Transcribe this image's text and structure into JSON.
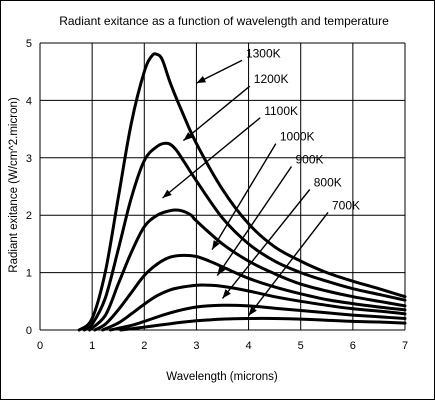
{
  "chart_data": {
    "type": "line",
    "title": "Radiant exitance as a function of wavelength and temperature",
    "xlabel": "Wavelength (microns)",
    "ylabel": "Radiant exitance (W/cm^2.micron)",
    "xlim": [
      0,
      7
    ],
    "ylim": [
      0,
      5
    ],
    "xticks": [
      "0",
      "1",
      "2",
      "3",
      "4",
      "5",
      "6",
      "7"
    ],
    "yticks": [
      "0",
      "1",
      "2",
      "3",
      "4",
      "5"
    ],
    "grid": true,
    "series": [
      {
        "name": "1300K",
        "x": [
          0.75,
          1.0,
          1.25,
          1.5,
          1.75,
          2.0,
          2.15,
          2.25,
          2.35,
          2.5,
          2.75,
          3.0,
          3.5,
          4.0,
          4.5,
          5.0,
          5.5,
          6.0,
          6.5,
          7.0
        ],
        "y": [
          0.0,
          0.2,
          1.0,
          2.3,
          3.6,
          4.5,
          4.78,
          4.8,
          4.7,
          4.3,
          3.75,
          3.25,
          2.45,
          1.85,
          1.45,
          1.2,
          1.0,
          0.85,
          0.72,
          0.58
        ]
      },
      {
        "name": "1200K",
        "x": [
          0.85,
          1.0,
          1.25,
          1.5,
          1.75,
          2.0,
          2.25,
          2.45,
          2.6,
          2.75,
          3.0,
          3.5,
          4.0,
          4.5,
          5.0,
          5.5,
          6.0,
          6.5,
          7.0
        ],
        "y": [
          0.0,
          0.1,
          0.55,
          1.4,
          2.3,
          2.95,
          3.2,
          3.25,
          3.15,
          2.95,
          2.6,
          1.95,
          1.5,
          1.2,
          1.0,
          0.85,
          0.72,
          0.62,
          0.52
        ]
      },
      {
        "name": "1100K",
        "x": [
          0.95,
          1.25,
          1.5,
          1.75,
          2.0,
          2.25,
          2.5,
          2.7,
          2.9,
          3.0,
          3.5,
          4.0,
          4.5,
          5.0,
          5.5,
          6.0,
          6.5,
          7.0
        ],
        "y": [
          0.0,
          0.25,
          0.8,
          1.35,
          1.8,
          2.0,
          2.08,
          2.08,
          2.0,
          1.9,
          1.5,
          1.2,
          0.98,
          0.8,
          0.68,
          0.58,
          0.5,
          0.42
        ]
      },
      {
        "name": "1000K",
        "x": [
          1.05,
          1.25,
          1.5,
          1.75,
          2.0,
          2.25,
          2.5,
          2.75,
          3.0,
          3.25,
          3.5,
          4.0,
          4.5,
          5.0,
          5.5,
          6.0,
          6.5,
          7.0
        ],
        "y": [
          0.0,
          0.1,
          0.35,
          0.65,
          0.95,
          1.15,
          1.27,
          1.3,
          1.28,
          1.2,
          1.1,
          0.9,
          0.75,
          0.63,
          0.53,
          0.46,
          0.4,
          0.35
        ]
      },
      {
        "name": "900K",
        "x": [
          1.2,
          1.5,
          1.75,
          2.0,
          2.25,
          2.5,
          2.75,
          3.0,
          3.25,
          3.5,
          4.0,
          4.5,
          5.0,
          5.5,
          6.0,
          6.5,
          7.0
        ],
        "y": [
          0.0,
          0.12,
          0.28,
          0.45,
          0.6,
          0.7,
          0.75,
          0.78,
          0.78,
          0.76,
          0.68,
          0.58,
          0.5,
          0.43,
          0.37,
          0.33,
          0.28
        ]
      },
      {
        "name": "800K",
        "x": [
          1.35,
          1.75,
          2.0,
          2.5,
          3.0,
          3.5,
          4.0,
          4.5,
          5.0,
          5.5,
          6.0,
          6.5,
          7.0
        ],
        "y": [
          0.0,
          0.08,
          0.15,
          0.3,
          0.4,
          0.43,
          0.42,
          0.38,
          0.34,
          0.3,
          0.26,
          0.23,
          0.2
        ]
      },
      {
        "name": "700K",
        "x": [
          1.55,
          2.0,
          2.5,
          3.0,
          3.5,
          4.0,
          4.5,
          5.0,
          5.5,
          6.0,
          6.5,
          7.0
        ],
        "y": [
          0.0,
          0.05,
          0.11,
          0.16,
          0.19,
          0.2,
          0.2,
          0.19,
          0.17,
          0.15,
          0.14,
          0.12
        ]
      }
    ],
    "annotations": [
      {
        "text": "1300K",
        "x_label": 3.95,
        "y_label": 4.75,
        "x_tip": 3.0,
        "y_tip": 4.3
      },
      {
        "text": "1200K",
        "x_label": 4.1,
        "y_label": 4.3,
        "x_tip": 2.75,
        "y_tip": 3.3
      },
      {
        "text": "1100K",
        "x_label": 4.3,
        "y_label": 3.75,
        "x_tip": 2.35,
        "y_tip": 2.3
      },
      {
        "text": "1000K",
        "x_label": 4.6,
        "y_label": 3.3,
        "x_tip": 3.3,
        "y_tip": 1.4
      },
      {
        "text": "900K",
        "x_label": 4.9,
        "y_label": 2.9,
        "x_tip": 3.4,
        "y_tip": 0.95
      },
      {
        "text": "800K",
        "x_label": 5.25,
        "y_label": 2.5,
        "x_tip": 3.5,
        "y_tip": 0.55
      },
      {
        "text": "700K",
        "x_label": 5.6,
        "y_label": 2.1,
        "x_tip": 4.0,
        "y_tip": 0.25
      }
    ]
  }
}
